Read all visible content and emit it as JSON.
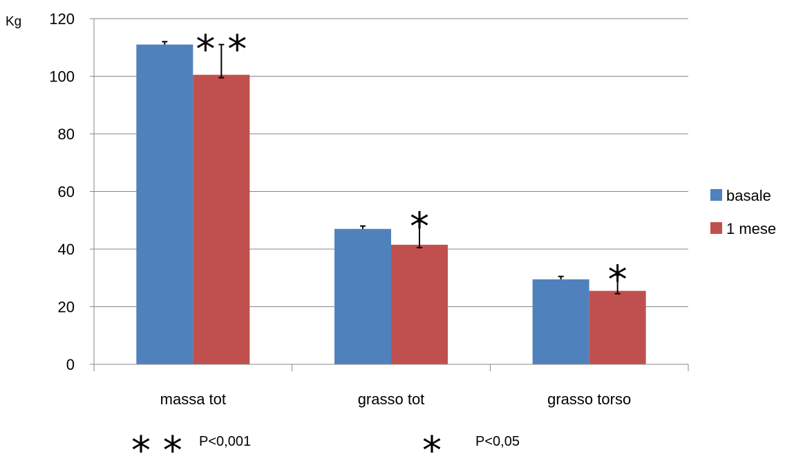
{
  "chart_data": {
    "type": "bar",
    "unit_label": "Kg",
    "categories": [
      "massa tot",
      "grasso tot",
      "grasso torso"
    ],
    "series": [
      {
        "name": "basale",
        "color": "#4F81BD",
        "values": [
          111,
          47,
          29.5
        ],
        "error_plus": [
          1,
          1,
          1
        ]
      },
      {
        "name": "1 mese",
        "color": "#C0504D",
        "values": [
          100.5,
          41.5,
          25.5
        ],
        "error_plus": [
          10.5,
          8,
          5.5
        ],
        "error_minus": [
          1,
          1,
          1
        ]
      }
    ],
    "ylim": [
      0,
      120
    ],
    "yticks": [
      0,
      20,
      40,
      60,
      80,
      100,
      120
    ],
    "grid": true,
    "legend_position": "right",
    "significance_marks": [
      "* *",
      "*",
      "*"
    ]
  },
  "footnote": {
    "double_mark": "* *",
    "double_text": "P<0,001",
    "single_mark": "*",
    "single_text": "P<0,05"
  }
}
